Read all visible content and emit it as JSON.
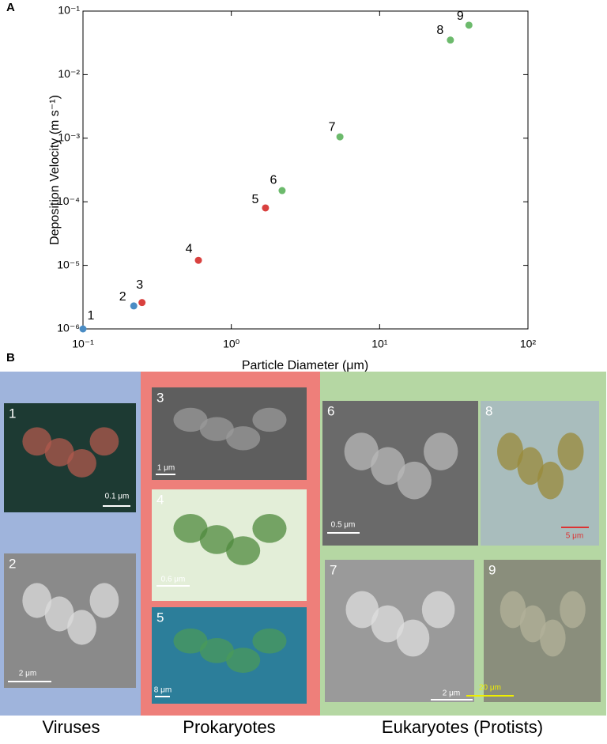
{
  "panel_labels": [
    "A",
    "B"
  ],
  "chart_data": {
    "type": "scatter",
    "x_label": "Particle Diameter (μm)",
    "y_label": "Deposition Velocity (m s⁻¹)",
    "log_x": true,
    "log_y": true,
    "xlim": [
      0.1,
      100
    ],
    "ylim": [
      1e-06,
      0.1
    ],
    "xticks": [
      {
        "value": 0.1,
        "label": "10⁻¹"
      },
      {
        "value": 1,
        "label": "10⁰"
      },
      {
        "value": 10,
        "label": "10¹"
      },
      {
        "value": 100,
        "label": "10²"
      }
    ],
    "yticks": [
      {
        "value": 1e-06,
        "label": "10⁻⁶"
      },
      {
        "value": 1e-05,
        "label": "10⁻⁵"
      },
      {
        "value": 0.0001,
        "label": "10⁻⁴"
      },
      {
        "value": 0.001,
        "label": "10⁻³"
      },
      {
        "value": 0.01,
        "label": "10⁻²"
      },
      {
        "value": 0.1,
        "label": "10⁻¹"
      }
    ],
    "point_labels": [
      "1",
      "2",
      "3",
      "4",
      "5",
      "6",
      "7",
      "8",
      "9"
    ],
    "x": [
      0.1,
      0.22,
      0.25,
      0.6,
      1.7,
      2.2,
      5.4,
      30,
      40
    ],
    "values": [
      1e-06,
      2.3e-06,
      2.6e-06,
      1.2e-05,
      8e-05,
      0.00015,
      0.00105,
      0.035,
      0.06
    ],
    "colors": [
      "#4a8cc4",
      "#4a8cc4",
      "#d9413f",
      "#d9413f",
      "#d9413f",
      "#6cba6c",
      "#6cba6c",
      "#6cba6c",
      "#6cba6c"
    ]
  },
  "gallery": {
    "groups": [
      {
        "name": "Viruses",
        "color": "#9fb4dc",
        "images": [
          {
            "number": "1",
            "scale": "0.1 μm"
          },
          {
            "number": "2",
            "scale": "2 μm"
          }
        ]
      },
      {
        "name": "Prokaryotes",
        "color": "#ee7f7a",
        "images": [
          {
            "number": "3",
            "scale": "1 μm"
          },
          {
            "number": "4",
            "scale": "0.6 μm"
          },
          {
            "number": "5",
            "scale": "8 μm"
          }
        ]
      },
      {
        "name": "Eukaryotes (Protists)",
        "color": "#b5d7a3",
        "images": [
          {
            "number": "6",
            "scale": "0.5 μm"
          },
          {
            "number": "8",
            "scale": "5 μm"
          },
          {
            "number": "7",
            "scale": "2 μm"
          },
          {
            "number": "9",
            "scale": "20 μm"
          }
        ]
      }
    ]
  }
}
